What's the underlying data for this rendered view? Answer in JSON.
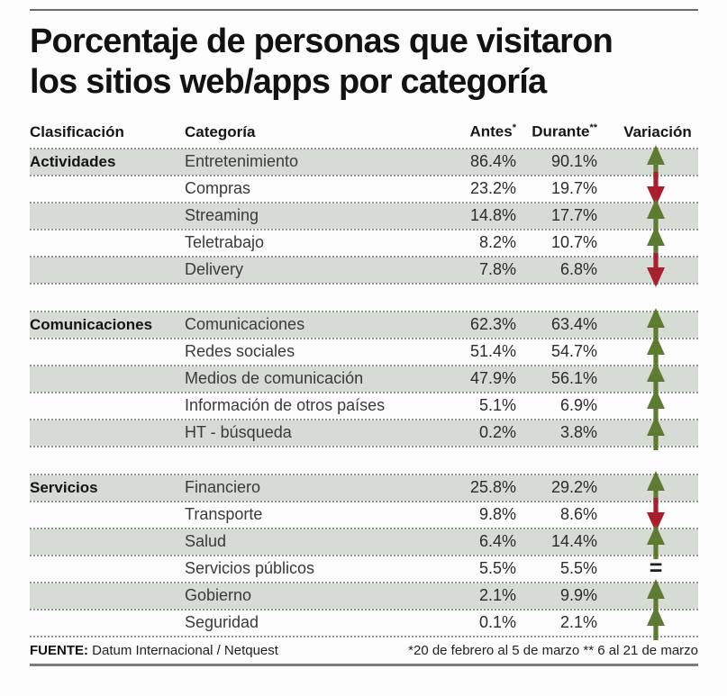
{
  "title": {
    "line1": "Porcentaje de personas que visitaron",
    "line2": "los sitios web/apps por categoría"
  },
  "columns": {
    "clasificacion": "Clasificación",
    "categoria": "Categoría",
    "antes": "Antes",
    "antes_sup": "*",
    "durante": "Durante",
    "durante_sup": "**",
    "variacion": "Variación"
  },
  "sections": [
    {
      "name": "Actividades",
      "rows": [
        {
          "categoria": "Entretenimiento",
          "antes": "86.4%",
          "durante": "90.1%",
          "variacion": "up"
        },
        {
          "categoria": "Compras",
          "antes": "23.2%",
          "durante": "19.7%",
          "variacion": "down"
        },
        {
          "categoria": "Streaming",
          "antes": "14.8%",
          "durante": "17.7%",
          "variacion": "up"
        },
        {
          "categoria": "Teletrabajo",
          "antes": "8.2%",
          "durante": "10.7%",
          "variacion": "up"
        },
        {
          "categoria": "Delivery",
          "antes": "7.8%",
          "durante": "6.8%",
          "variacion": "down"
        }
      ]
    },
    {
      "name": "Comunicaciones",
      "rows": [
        {
          "categoria": "Comunicaciones",
          "antes": "62.3%",
          "durante": "63.4%",
          "variacion": "up"
        },
        {
          "categoria": "Redes sociales",
          "antes": "51.4%",
          "durante": "54.7%",
          "variacion": "up"
        },
        {
          "categoria": "Medios de comunicación",
          "antes": "47.9%",
          "durante": "56.1%",
          "variacion": "up"
        },
        {
          "categoria": "Información de otros países",
          "antes": "5.1%",
          "durante": "6.9%",
          "variacion": "up"
        },
        {
          "categoria": "HT - búsqueda",
          "antes": "0.2%",
          "durante": "3.8%",
          "variacion": "up"
        }
      ]
    },
    {
      "name": "Servicios",
      "rows": [
        {
          "categoria": "Financiero",
          "antes": "25.8%",
          "durante": "29.2%",
          "variacion": "up"
        },
        {
          "categoria": "Transporte",
          "antes": "9.8%",
          "durante": "8.6%",
          "variacion": "down"
        },
        {
          "categoria": "Salud",
          "antes": "6.4%",
          "durante": "14.4%",
          "variacion": "up"
        },
        {
          "categoria": "Servicios públicos",
          "antes": "5.5%",
          "durante": "5.5%",
          "variacion": "equal"
        },
        {
          "categoria": "Gobierno",
          "antes": "2.1%",
          "durante": "9.9%",
          "variacion": "up"
        },
        {
          "categoria": "Seguridad",
          "antes": "0.1%",
          "durante": "2.1%",
          "variacion": "up"
        }
      ]
    }
  ],
  "variation_glyphs": {
    "equal": "="
  },
  "colors": {
    "up_arrow": "#5d7b31",
    "down_arrow": "#a91f2d",
    "shaded_row": "#d6dbd5",
    "equal_sign": "#1d1d1b"
  },
  "footer": {
    "source_label": "FUENTE:",
    "source_text": " Datum Internacional / Netquest",
    "notes": "*20 de febrero al 5 de marzo ** 6 al 21 de marzo"
  },
  "chart_data": {
    "type": "table",
    "title": "Porcentaje de personas que visitaron los sitios web/apps por categoría",
    "columns": [
      "Clasificación",
      "Categoría",
      "Antes*",
      "Durante**",
      "Variación"
    ],
    "rows": [
      [
        "Actividades",
        "Entretenimiento",
        86.4,
        90.1,
        "up"
      ],
      [
        "Actividades",
        "Compras",
        23.2,
        19.7,
        "down"
      ],
      [
        "Actividades",
        "Streaming",
        14.8,
        17.7,
        "up"
      ],
      [
        "Actividades",
        "Teletrabajo",
        8.2,
        10.7,
        "up"
      ],
      [
        "Actividades",
        "Delivery",
        7.8,
        6.8,
        "down"
      ],
      [
        "Comunicaciones",
        "Comunicaciones",
        62.3,
        63.4,
        "up"
      ],
      [
        "Comunicaciones",
        "Redes sociales",
        51.4,
        54.7,
        "up"
      ],
      [
        "Comunicaciones",
        "Medios de comunicación",
        47.9,
        56.1,
        "up"
      ],
      [
        "Comunicaciones",
        "Información de otros países",
        5.1,
        6.9,
        "up"
      ],
      [
        "Comunicaciones",
        "HT - búsqueda",
        0.2,
        3.8,
        "up"
      ],
      [
        "Servicios",
        "Financiero",
        25.8,
        29.2,
        "up"
      ],
      [
        "Servicios",
        "Transporte",
        9.8,
        8.6,
        "down"
      ],
      [
        "Servicios",
        "Salud",
        6.4,
        14.4,
        "up"
      ],
      [
        "Servicios",
        "Servicios públicos",
        5.5,
        5.5,
        "equal"
      ],
      [
        "Servicios",
        "Gobierno",
        2.1,
        9.9,
        "up"
      ],
      [
        "Servicios",
        "Seguridad",
        0.1,
        2.1,
        "up"
      ]
    ],
    "units": "percent",
    "source": "Datum Internacional / Netquest",
    "notes": "*20 de febrero al 5 de marzo ** 6 al 21 de marzo"
  }
}
